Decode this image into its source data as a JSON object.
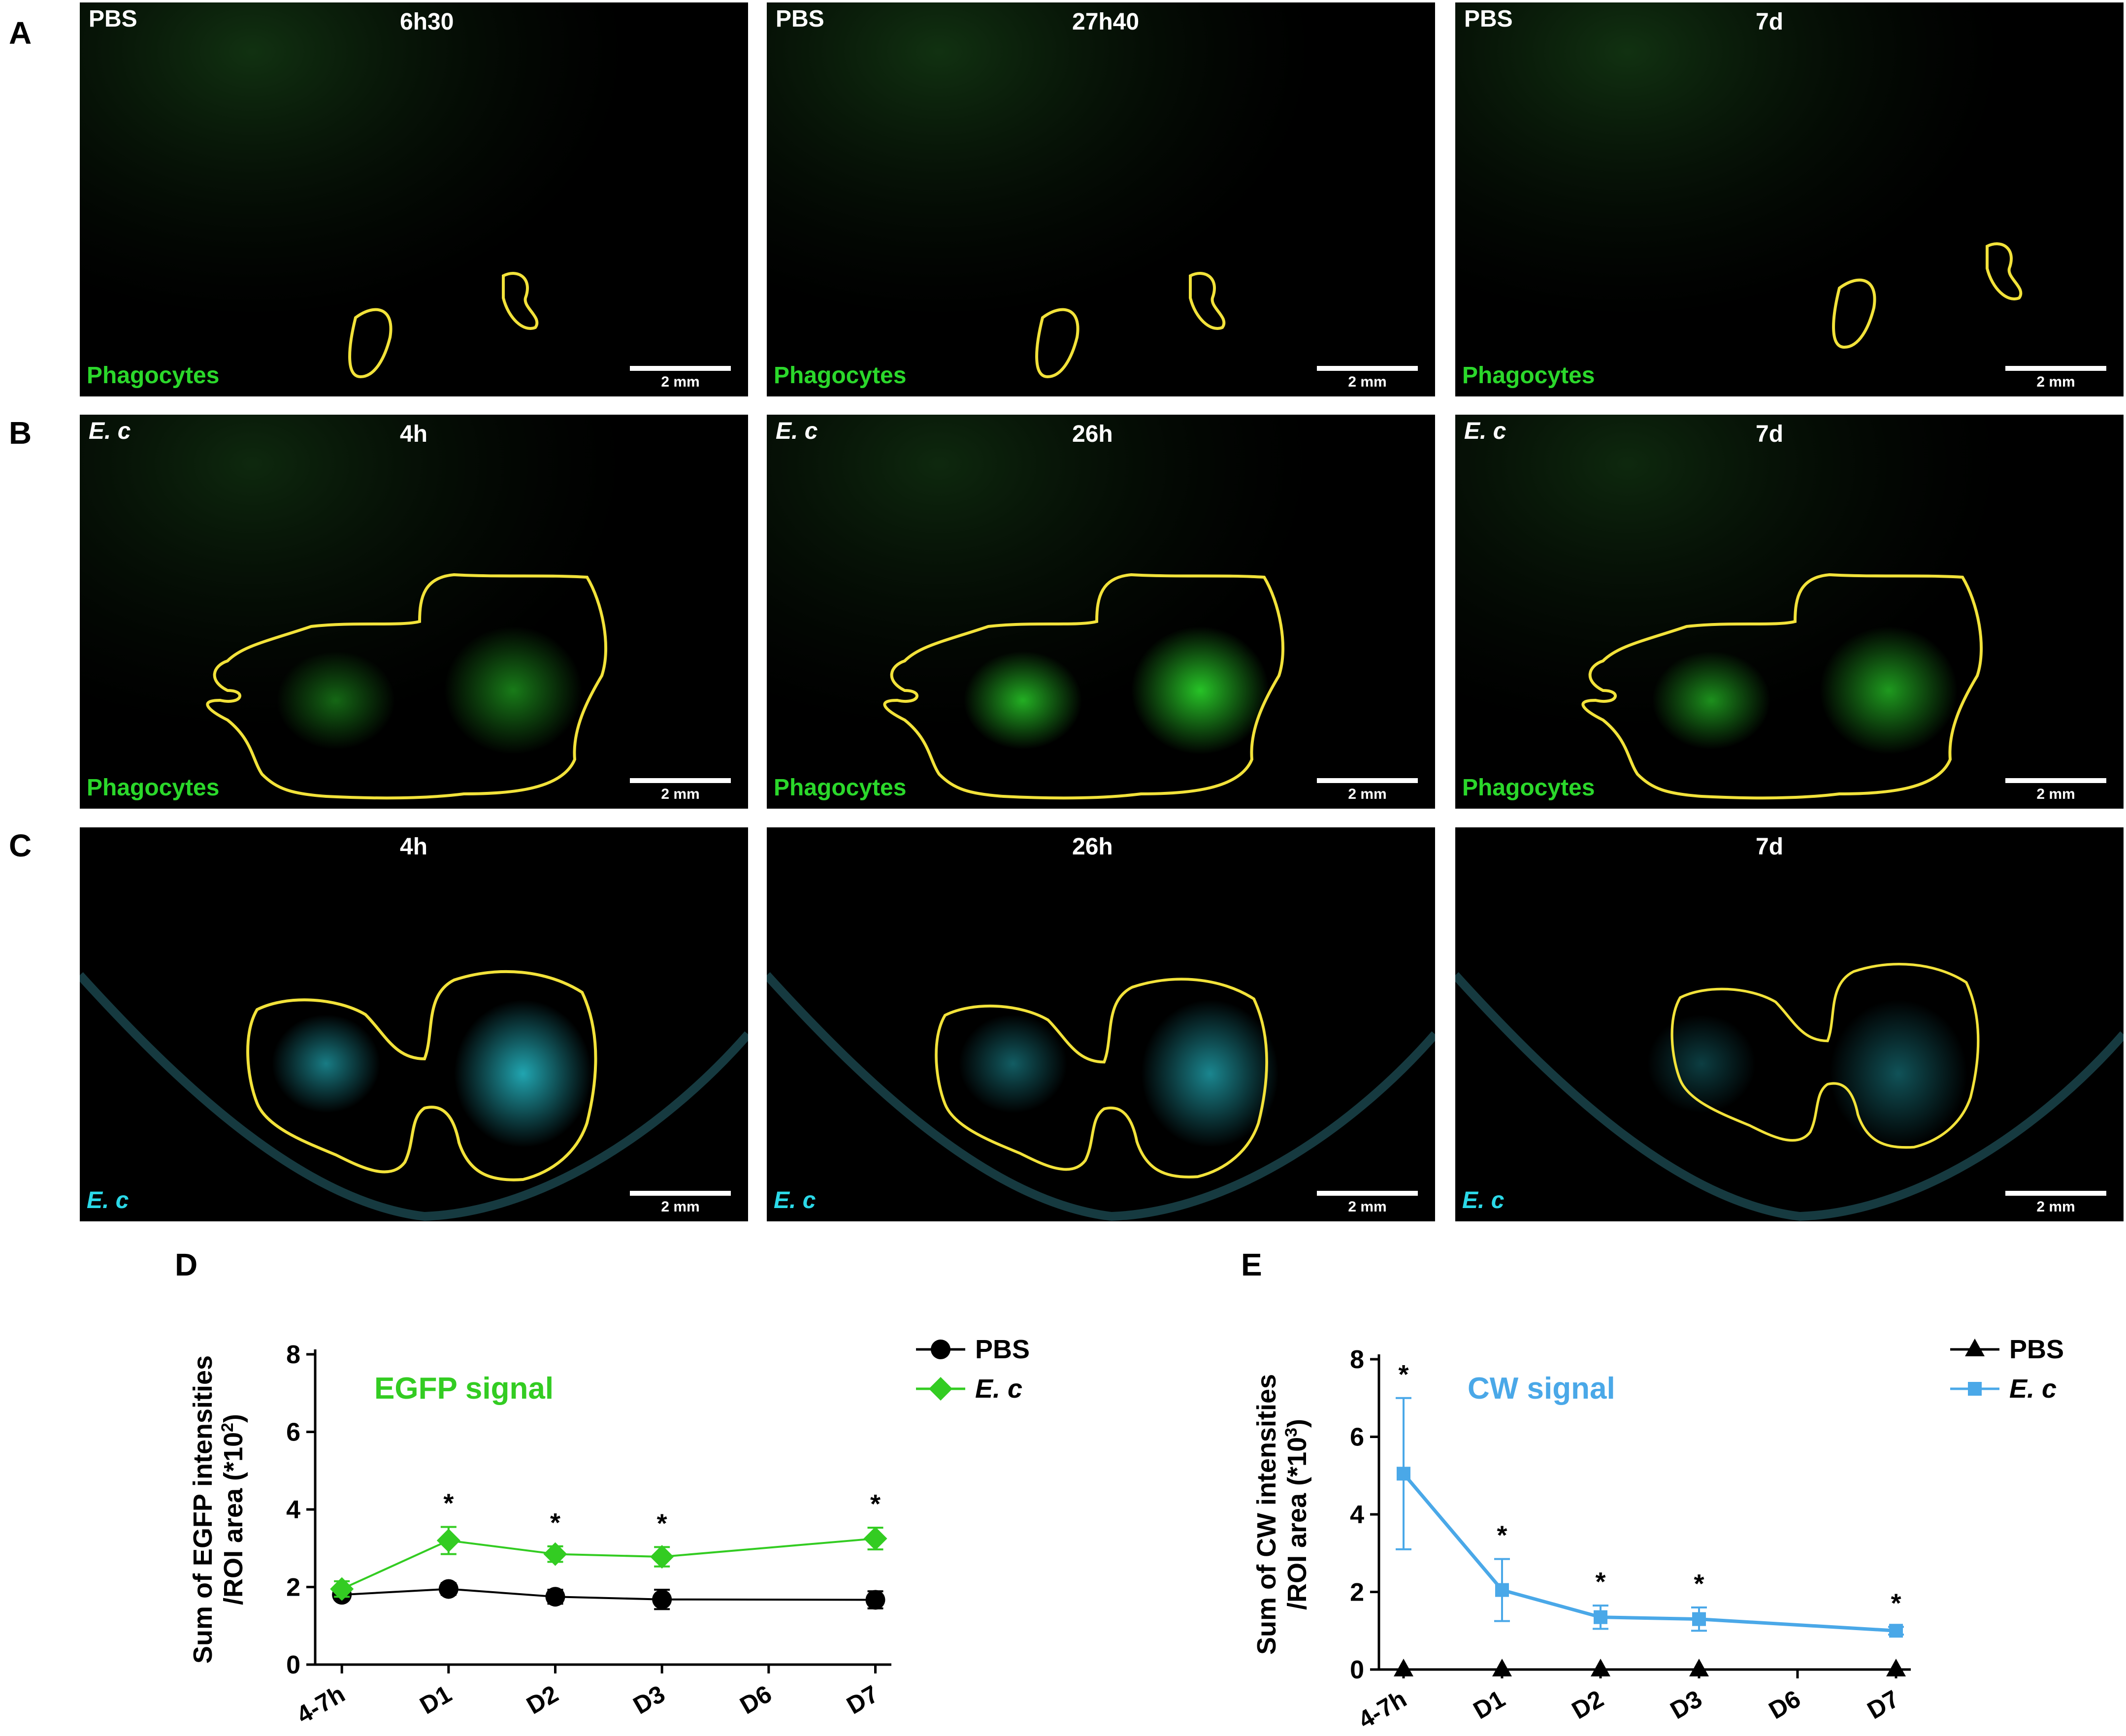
{
  "rows": [
    {
      "letter": "A",
      "panels": [
        {
          "treatment": "PBS",
          "time": "6h30",
          "channel": "Phagocytes",
          "scalebar": "2 mm"
        },
        {
          "treatment": "PBS",
          "time": "27h40",
          "channel": "Phagocytes",
          "scalebar": "2 mm"
        },
        {
          "treatment": "PBS",
          "time": "7d",
          "channel": "Phagocytes",
          "scalebar": "2 mm"
        }
      ]
    },
    {
      "letter": "B",
      "panels": [
        {
          "treatment": "E. c",
          "time": "4h",
          "channel": "Phagocytes",
          "scalebar": "2 mm"
        },
        {
          "treatment": "E. c",
          "time": "26h",
          "channel": "Phagocytes",
          "scalebar": "2 mm"
        },
        {
          "treatment": "E. c",
          "time": "7d",
          "channel": "Phagocytes",
          "scalebar": "2 mm"
        }
      ]
    },
    {
      "letter": "C",
      "panels": [
        {
          "treatment": "",
          "time": "4h",
          "channel": "E. c",
          "scalebar": "2 mm"
        },
        {
          "treatment": "",
          "time": "26h",
          "channel": "E. c",
          "scalebar": "2 mm"
        },
        {
          "treatment": "",
          "time": "7d",
          "channel": "E. c",
          "scalebar": "2 mm"
        }
      ]
    }
  ],
  "colors": {
    "phagocyte_green": "#2bd82b",
    "ec_cyan": "#2bd9e8",
    "roi_yellow": "#f2e23a",
    "ec_line_green": "#33cc22",
    "cw_blue": "#4aa8e8"
  },
  "chart_data": [
    {
      "panel": "D",
      "type": "line",
      "annotation": "EGFP signal",
      "ylabel_line1": "Sum of EGFP intensities",
      "ylabel_line2": "/ROI area (*10",
      "ylabel_sup": "2",
      "ylabel_end": ")",
      "categories": [
        "4-7h",
        "D1",
        "D2",
        "D3",
        "D6",
        "D7"
      ],
      "ylim": [
        0,
        8
      ],
      "yticks": [
        "0",
        "2",
        "4",
        "6",
        "8"
      ],
      "legend_position": "top-right",
      "series": [
        {
          "name": "PBS",
          "color": "#000000",
          "marker": "circle",
          "values": [
            1.8,
            1.95,
            1.75,
            1.68,
            null,
            1.67
          ],
          "errors": [
            0.12,
            0.15,
            0.18,
            0.25,
            null,
            0.22
          ]
        },
        {
          "name": "E. c",
          "color": "#33cc22",
          "marker": "diamond",
          "values": [
            1.95,
            3.2,
            2.85,
            2.78,
            null,
            3.25
          ],
          "errors": [
            0.2,
            0.35,
            0.2,
            0.25,
            null,
            0.28
          ]
        }
      ],
      "significance": [
        "",
        "*",
        "*",
        "*",
        "",
        "*"
      ]
    },
    {
      "panel": "E",
      "type": "line",
      "annotation": "CW  signal",
      "ylabel_line1": "Sum of CW intensities",
      "ylabel_line2": "/ROI area (*10",
      "ylabel_sup": "3",
      "ylabel_end": ")",
      "categories": [
        "4-7h",
        "D1",
        "D2",
        "D3",
        "D6",
        "D7"
      ],
      "ylim": [
        0,
        8
      ],
      "yticks": [
        "0",
        "2",
        "4",
        "6",
        "8"
      ],
      "legend_position": "top-right",
      "series": [
        {
          "name": "PBS",
          "color": "#000000",
          "marker": "triangle",
          "values": [
            0,
            0,
            0,
            0,
            null,
            0
          ],
          "errors": [
            0,
            0,
            0,
            0,
            null,
            0
          ]
        },
        {
          "name": "E. c",
          "color": "#4aa8e8",
          "marker": "square",
          "values": [
            5.05,
            2.05,
            1.35,
            1.3,
            null,
            1.0
          ],
          "errors": [
            1.95,
            0.8,
            0.3,
            0.3,
            null,
            0.1
          ]
        }
      ],
      "significance": [
        "*",
        "*",
        "*",
        "*",
        "",
        "*"
      ]
    }
  ]
}
